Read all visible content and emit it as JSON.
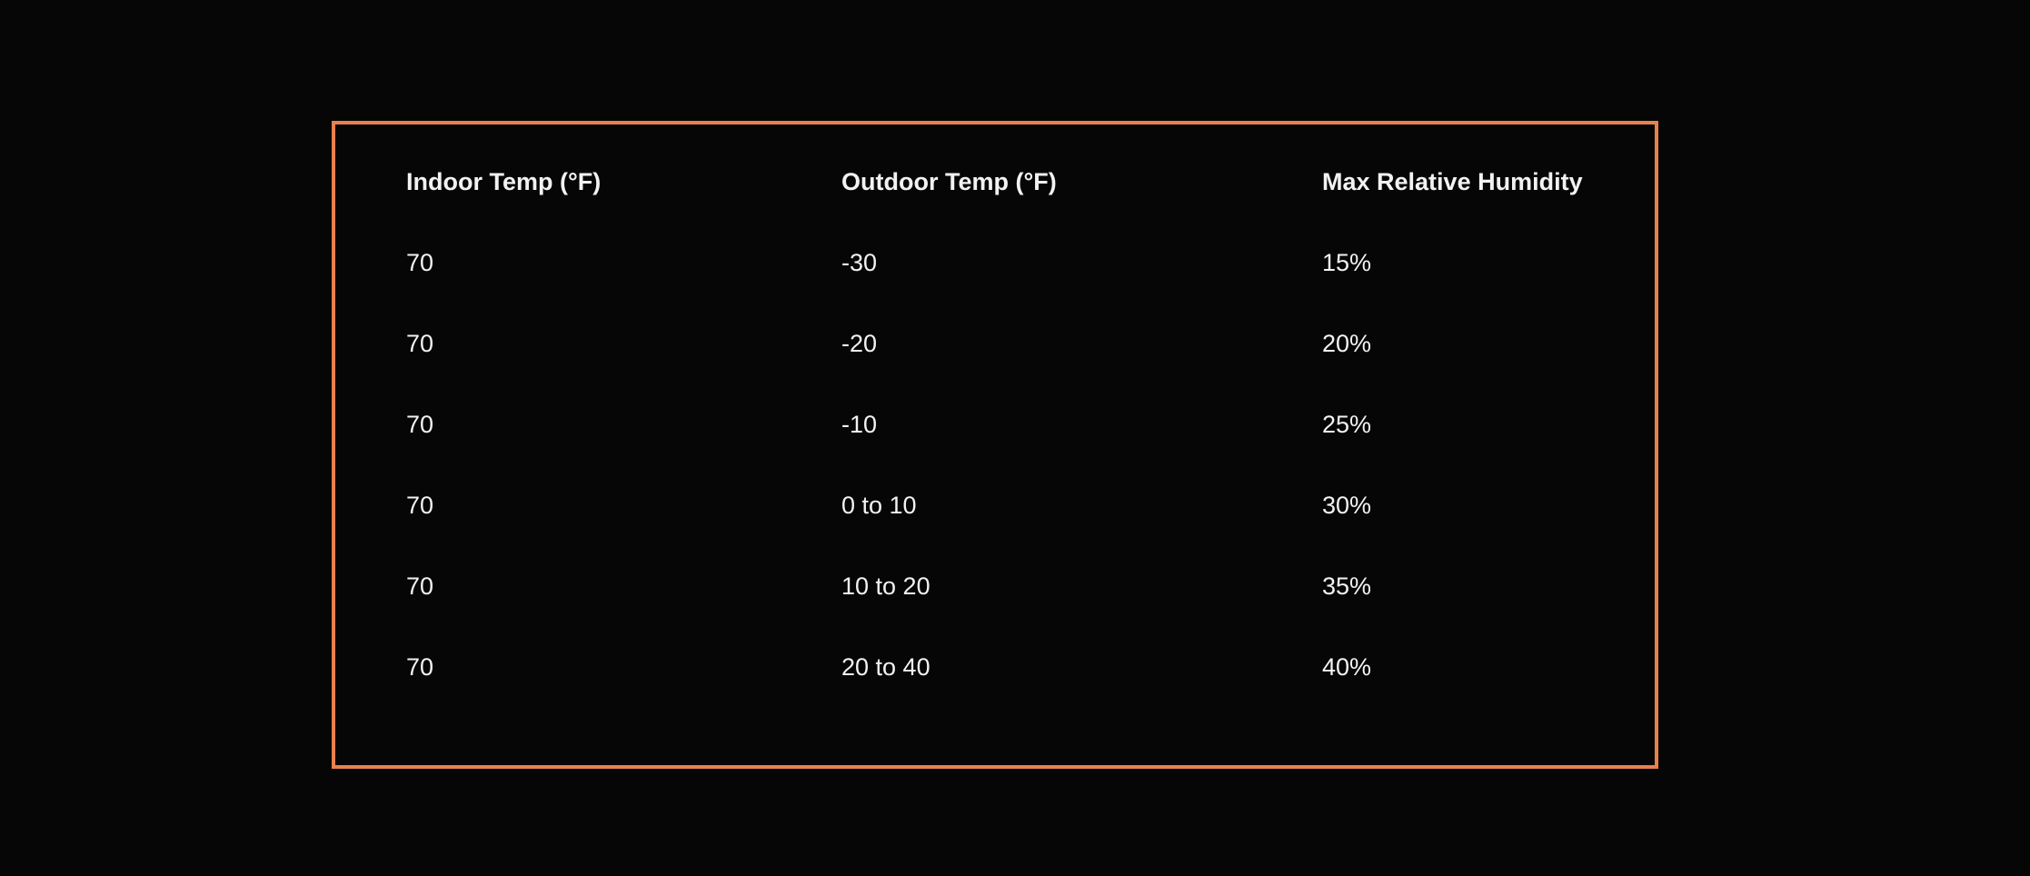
{
  "table": {
    "headers": [
      "Indoor Temp (°F)",
      "Outdoor Temp (°F)",
      "Max Relative Humidity"
    ],
    "rows": [
      [
        "70",
        "-30",
        "15%"
      ],
      [
        "70",
        "-20",
        "20%"
      ],
      [
        "70",
        "-10",
        "25%"
      ],
      [
        "70",
        "0 to 10",
        "30%"
      ],
      [
        "70",
        "10 to 20",
        "35%"
      ],
      [
        "70",
        "20 to 40",
        "40%"
      ]
    ]
  },
  "colors": {
    "border": "#e9804e",
    "background": "#060606",
    "text": "#f2f2f2"
  }
}
